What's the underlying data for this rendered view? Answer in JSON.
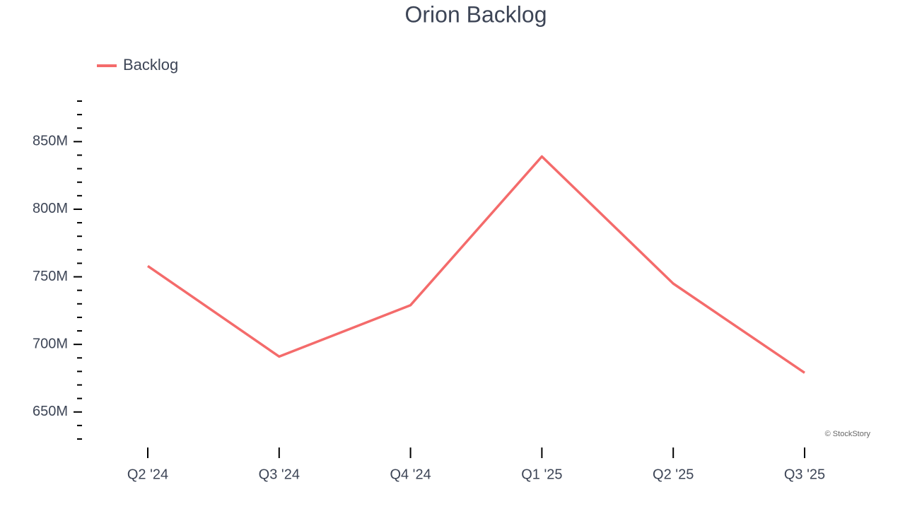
{
  "chart_data": {
    "type": "line",
    "title": "Orion Backlog",
    "credit": "© StockStory",
    "categories": [
      "Q2 '24",
      "Q3 '24",
      "Q4 '24",
      "Q1 '25",
      "Q2 '25",
      "Q3 '25"
    ],
    "series": [
      {
        "name": "Backlog",
        "color": "#f46b6b",
        "values": [
          758000000,
          691000000,
          729000000,
          839000000,
          745000000,
          679000000
        ]
      }
    ],
    "ylim": [
      630000000,
      880000000
    ],
    "yticks": [
      {
        "value": 650000000,
        "label": "650M"
      },
      {
        "value": 700000000,
        "label": "700M"
      },
      {
        "value": 750000000,
        "label": "750M"
      },
      {
        "value": 800000000,
        "label": "800M"
      },
      {
        "value": 850000000,
        "label": "850M"
      }
    ],
    "yminorticks": [
      630000000,
      640000000,
      660000000,
      670000000,
      680000000,
      690000000,
      710000000,
      720000000,
      730000000,
      740000000,
      760000000,
      770000000,
      780000000,
      790000000,
      810000000,
      820000000,
      830000000,
      840000000,
      860000000,
      870000000,
      880000000
    ],
    "legend": "top-left",
    "grid": false
  }
}
